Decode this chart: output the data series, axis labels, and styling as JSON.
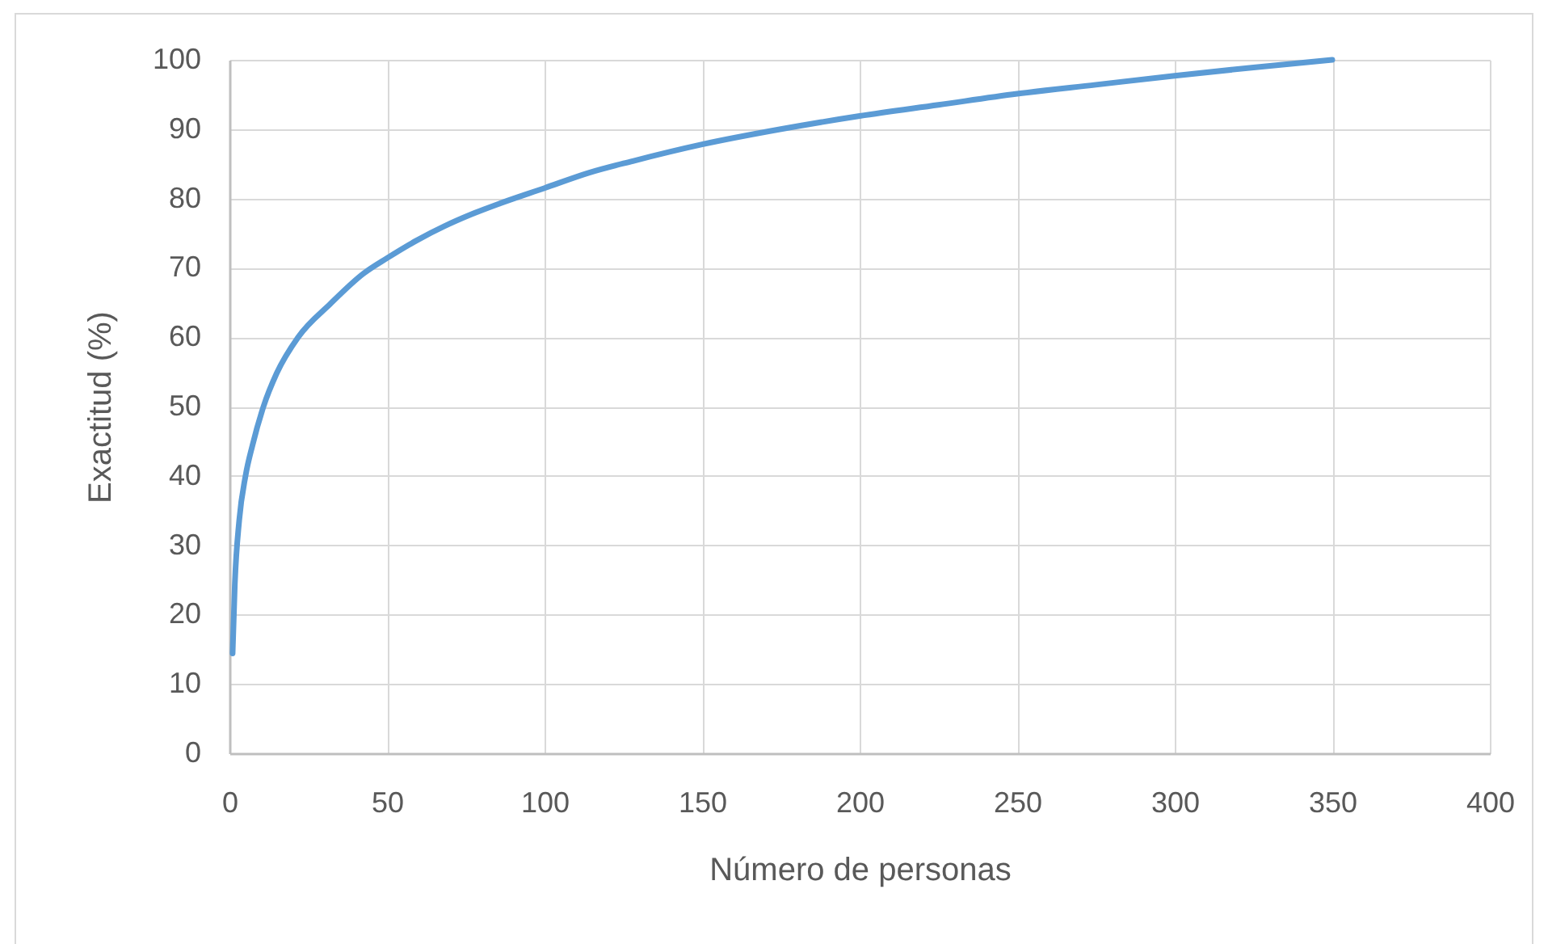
{
  "chart_data": {
    "type": "line",
    "xlabel": "Número de personas",
    "ylabel": "Exactitud (%)",
    "x": [
      1,
      1.7,
      3.1,
      5.1,
      7.3,
      10.8,
      15,
      21.8,
      32,
      42.6,
      50,
      59.6,
      68.2,
      76.7,
      85.3,
      100,
      114,
      128,
      150,
      175,
      200,
      225,
      250,
      275,
      300,
      325,
      350
    ],
    "values": [
      14.4,
      24.3,
      33.6,
      40,
      44.4,
      50,
      54.8,
      60,
      64.8,
      69.2,
      71.4,
      74,
      76,
      77.7,
      79.2,
      81.5,
      83.7,
      85.4,
      87.8,
      90,
      91.9,
      93.5,
      95.1,
      96.4,
      97.7,
      98.9,
      100
    ],
    "color": "#5b9bd5",
    "xlim": [
      0,
      400
    ],
    "ylim": [
      0,
      100
    ],
    "xticks": [
      0,
      50,
      100,
      150,
      200,
      250,
      300,
      350,
      400
    ],
    "yticks": [
      0,
      10,
      20,
      30,
      40,
      50,
      60,
      70,
      80,
      90,
      100
    ],
    "grid": true
  }
}
